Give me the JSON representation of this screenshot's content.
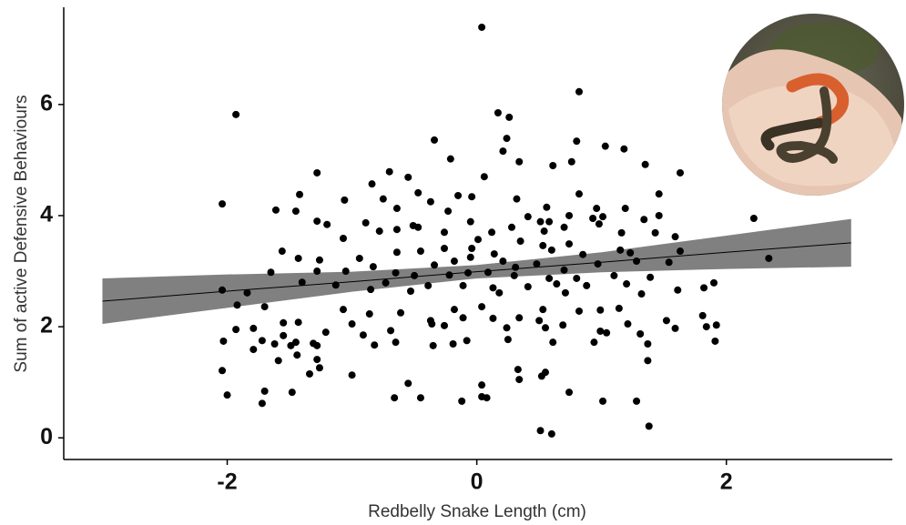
{
  "chart_data": {
    "type": "scatter",
    "x_label": "Redbelly Snake Length (cm)",
    "y_label": "Sum of active Defensive Behaviours",
    "xlim": [
      -3.31,
      3.33
    ],
    "ylim": [
      -0.39,
      7.75
    ],
    "xticks": [
      -2,
      0,
      2
    ],
    "yticks": [
      0,
      2,
      4,
      6
    ],
    "grid": false,
    "series": [
      {
        "color": "#000000",
        "x": [
          0.04,
          -1.93,
          0.82,
          0.17,
          0.26,
          -0.34,
          0.24,
          0.8,
          1.03,
          1.18,
          0.21,
          -0.21,
          0.76,
          0.61,
          0.34,
          1.35,
          -1.28,
          -0.7,
          1.63,
          0.06,
          -0.55,
          -0.84,
          -1.42,
          -0.47,
          -0.15,
          0.32,
          0.82,
          1.46,
          -2.04,
          -1.06,
          -0.75,
          -0.37,
          -0.04,
          0.56,
          0.96,
          1.19,
          -1.61,
          -1.45,
          -0.64,
          -0.23,
          0.41,
          0.74,
          0.93,
          1.01,
          2.22,
          1.34,
          1.46,
          -1.28,
          -1.2,
          -0.89,
          -0.51,
          -0.05,
          0.51,
          0.7,
          0.98,
          -0.78,
          -0.64,
          -0.47,
          -0.26,
          0.12,
          0.28,
          0.54,
          0.58,
          1.16,
          1.43,
          1.59,
          -1.07,
          0.01,
          0.35,
          0.53,
          0.74,
          -1.56,
          -0.64,
          -0.45,
          -0.26,
          -0.04,
          0.14,
          0.6,
          0.85,
          1.15,
          1.23,
          1.63,
          2.34,
          -1.43,
          -1.26,
          -0.94,
          -0.83,
          -0.34,
          -0.18,
          -0.05,
          0.21,
          0.31,
          0.48,
          0.7,
          0.97,
          1.28,
          1.54,
          -1.65,
          -1.28,
          -1.05,
          -0.65,
          -0.5,
          -0.22,
          -0.07,
          0.09,
          0.3,
          0.58,
          0.8,
          1.1,
          1.39,
          -1.4,
          -1.13,
          -0.73,
          -0.39,
          -0.11,
          0.13,
          0.41,
          0.64,
          0.88,
          1.2,
          1.82,
          1.9,
          -2.04,
          -1.84,
          -0.85,
          -0.53,
          0.18,
          0.71,
          1.32,
          1.61,
          -1.92,
          -1.7,
          -1.07,
          -0.61,
          -0.18,
          0.04,
          0.53,
          0.82,
          0.99,
          1.14,
          -0.86,
          -0.37,
          -0.11,
          0.13,
          0.34,
          0.5,
          1.21,
          1.52,
          1.81,
          -1.55,
          -1.43,
          -1.0,
          -0.36,
          -0.26,
          0.69,
          -1.93,
          -1.79,
          -1.21,
          -0.69,
          0.24,
          0.55,
          0.99,
          1.59,
          1.84,
          1.92,
          -1.55,
          -0.91,
          1.04,
          1.31,
          -2.03,
          -1.72,
          -1.45,
          -1.31,
          -1.62,
          -0.65,
          -0.19,
          -0.08,
          0.25,
          0.61,
          0.94,
          1.91,
          -1.49,
          -1.28,
          -0.82,
          -0.35,
          1.37,
          -1.79,
          -1.44,
          -1.59,
          -1.28,
          1.37,
          -1.26,
          -2.04,
          -1.34,
          -1.0,
          0.33,
          0.55,
          0.34,
          0.52,
          -0.55,
          0.04,
          -1.7,
          -1.48,
          0.74,
          -2.0,
          -0.66,
          -0.45,
          0.04,
          0.08,
          -0.12,
          -1.72,
          1.01,
          1.28,
          1.38,
          0.51,
          0.6
        ],
        "values": [
          7.39,
          5.82,
          6.23,
          5.85,
          5.77,
          5.36,
          5.39,
          5.34,
          5.25,
          5.2,
          5.16,
          5.02,
          4.97,
          4.9,
          4.97,
          4.92,
          4.77,
          4.79,
          4.77,
          4.7,
          4.69,
          4.57,
          4.38,
          4.41,
          4.36,
          4.3,
          4.39,
          4.39,
          4.21,
          4.28,
          4.3,
          4.25,
          4.34,
          4.15,
          4.13,
          4.13,
          4.1,
          4.08,
          4.13,
          4.08,
          3.98,
          4.0,
          3.95,
          3.98,
          3.95,
          3.93,
          4.0,
          3.9,
          3.84,
          3.87,
          3.82,
          3.89,
          3.89,
          3.79,
          3.85,
          3.72,
          3.75,
          3.79,
          3.7,
          3.7,
          3.79,
          3.72,
          3.89,
          3.69,
          3.69,
          3.62,
          3.59,
          3.57,
          3.54,
          3.46,
          3.49,
          3.36,
          3.34,
          3.36,
          3.41,
          3.41,
          3.31,
          3.38,
          3.3,
          3.38,
          3.33,
          3.36,
          3.23,
          3.23,
          3.2,
          3.23,
          3.08,
          3.11,
          3.18,
          3.25,
          3.18,
          3.07,
          3.13,
          3.02,
          3.13,
          3.18,
          3.16,
          2.98,
          3.0,
          3.0,
          2.97,
          2.92,
          2.93,
          2.97,
          2.98,
          2.92,
          2.87,
          2.87,
          2.92,
          2.89,
          2.8,
          2.75,
          2.79,
          2.74,
          2.74,
          2.7,
          2.72,
          2.77,
          2.74,
          2.77,
          2.7,
          2.79,
          2.66,
          2.61,
          2.67,
          2.64,
          2.61,
          2.61,
          2.59,
          2.66,
          2.39,
          2.36,
          2.31,
          2.25,
          2.31,
          2.36,
          2.31,
          2.28,
          2.3,
          2.33,
          2.23,
          2.11,
          2.16,
          2.15,
          2.16,
          2.11,
          2.05,
          2.11,
          2.2,
          2.07,
          2.08,
          2.05,
          2.05,
          2.02,
          2.03,
          1.95,
          1.97,
          1.9,
          1.93,
          1.98,
          1.98,
          1.92,
          1.97,
          2.0,
          2.03,
          1.84,
          1.85,
          1.89,
          1.87,
          1.74,
          1.75,
          1.72,
          1.7,
          1.69,
          1.72,
          1.69,
          1.75,
          1.77,
          1.72,
          1.72,
          1.74,
          1.66,
          1.66,
          1.67,
          1.66,
          1.69,
          1.59,
          1.49,
          1.39,
          1.41,
          1.39,
          1.26,
          1.21,
          1.15,
          1.13,
          1.23,
          1.18,
          1.05,
          1.11,
          0.98,
          0.95,
          0.84,
          0.82,
          0.82,
          0.77,
          0.72,
          0.72,
          0.74,
          0.72,
          0.66,
          0.62,
          0.66,
          0.66,
          0.21,
          0.13,
          0.07
        ]
      }
    ],
    "fit": {
      "color": "#000000",
      "band_color": "#808080",
      "x": [
        -3,
        -2,
        -1,
        0,
        1,
        2,
        3
      ],
      "values": [
        2.46,
        2.64,
        2.81,
        2.99,
        3.16,
        3.34,
        3.51
      ],
      "lower": [
        2.05,
        2.34,
        2.63,
        2.87,
        2.98,
        3.04,
        3.08
      ],
      "upper": [
        2.87,
        2.94,
        2.99,
        3.11,
        3.34,
        3.64,
        3.94
      ]
    }
  }
}
